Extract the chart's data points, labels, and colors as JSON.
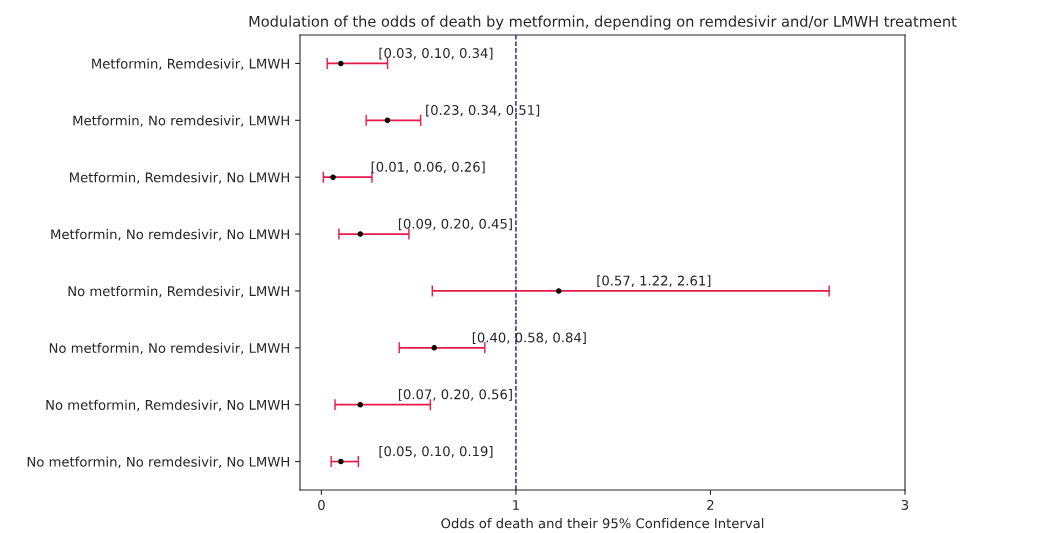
{
  "chart_data": {
    "type": "scatter",
    "orientation": "horizontal",
    "title": "Modulation of the odds of death by metformin, depending on remdesivir and/or LMWH treatment",
    "xlabel": "Odds of death and their 95% Confidence Interval",
    "categories": [
      "Metformin, Remdesivir, LMWH",
      "Metformin, No remdesivir, LMWH",
      "Metformin, Remdesivir, No LMWH",
      "Metformin, No remdesivir, No LMWH",
      "No metformin, Remdesivir, LMWH",
      "No metformin, No remdesivir, LMWH",
      "No metformin, Remdesivir, No LMWH",
      "No metformin, No remdesivir, No LMWH"
    ],
    "series": [
      {
        "color": "#000000",
        "values": [
          0.1,
          0.34,
          0.06,
          0.2,
          1.22,
          0.58,
          0.2,
          0.1
        ],
        "errors": [
          [
            0.03,
            0.34
          ],
          [
            0.23,
            0.51
          ],
          [
            0.01,
            0.26
          ],
          [
            0.09,
            0.45
          ],
          [
            0.57,
            2.61
          ],
          [
            0.4,
            0.84
          ],
          [
            0.07,
            0.56
          ],
          [
            0.05,
            0.19
          ]
        ],
        "value_labels": [
          "[0.03, 0.10, 0.34]",
          "[0.23, 0.34, 0.51]",
          "[0.01, 0.06, 0.26]",
          "[0.09, 0.20, 0.45]",
          "[0.57, 1.22, 2.61]",
          "[0.40, 0.58, 0.84]",
          "[0.07, 0.20, 0.56]",
          "[0.05, 0.10, 0.19]"
        ]
      }
    ],
    "xlim": [
      -0.11,
      3
    ],
    "xticks": [
      0,
      1,
      2,
      3
    ],
    "ref_lines": [
      {
        "axis": "x",
        "value": 1,
        "color": "#00008b",
        "line_style": "dashed"
      }
    ],
    "marker": "circle",
    "grid": false
  }
}
